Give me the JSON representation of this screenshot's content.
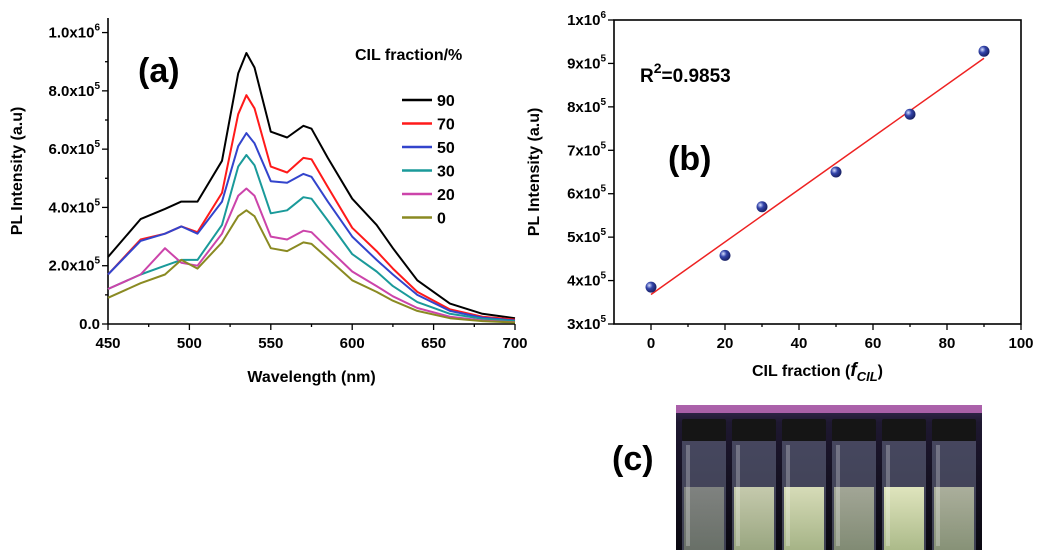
{
  "chart_data": [
    {
      "panel": "(a)",
      "type": "line",
      "xlabel": "Wavelength (nm)",
      "ylabel": "PL Intensity (a.u)",
      "xlim": [
        450,
        700
      ],
      "ylim": [
        0,
        1050000
      ],
      "x_ticks": [
        "450",
        "500",
        "550",
        "600",
        "650",
        "700"
      ],
      "y_ticks": [
        {
          "mantissa": "0.0",
          "exp": ""
        },
        {
          "mantissa": "2.0x10",
          "exp": "5"
        },
        {
          "mantissa": "4.0x10",
          "exp": "5"
        },
        {
          "mantissa": "6.0x10",
          "exp": "5"
        },
        {
          "mantissa": "8.0x10",
          "exp": "5"
        },
        {
          "mantissa": "1.0x10",
          "exp": "6"
        }
      ],
      "legend_title": "CIL fraction/%",
      "legend_position": "top-right",
      "x": [
        450,
        470,
        485,
        495,
        505,
        520,
        530,
        535,
        540,
        550,
        560,
        570,
        575,
        585,
        600,
        615,
        625,
        640,
        660,
        680,
        700
      ],
      "series": [
        {
          "name": "90",
          "color": "#000000",
          "values": [
            230000,
            360000,
            395000,
            420000,
            420000,
            560000,
            860000,
            930000,
            880000,
            660000,
            640000,
            680000,
            670000,
            570000,
            430000,
            340000,
            260000,
            150000,
            70000,
            35000,
            20000
          ]
        },
        {
          "name": "70",
          "color": "#ff1a1a",
          "values": [
            170000,
            290000,
            310000,
            335000,
            315000,
            450000,
            720000,
            785000,
            740000,
            540000,
            520000,
            570000,
            565000,
            470000,
            330000,
            250000,
            190000,
            110000,
            50000,
            25000,
            15000
          ]
        },
        {
          "name": "50",
          "color": "#3344cc",
          "values": [
            170000,
            285000,
            310000,
            335000,
            310000,
            420000,
            610000,
            655000,
            620000,
            490000,
            485000,
            515000,
            505000,
            420000,
            300000,
            220000,
            170000,
            100000,
            45000,
            22000,
            12000
          ]
        },
        {
          "name": "30",
          "color": "#1a9a9a",
          "values": [
            120000,
            170000,
            200000,
            220000,
            220000,
            340000,
            540000,
            580000,
            545000,
            380000,
            390000,
            435000,
            430000,
            355000,
            240000,
            180000,
            130000,
            75000,
            35000,
            18000,
            10000
          ]
        },
        {
          "name": "20",
          "color": "#cc44aa",
          "values": [
            120000,
            170000,
            260000,
            210000,
            200000,
            310000,
            440000,
            465000,
            440000,
            300000,
            290000,
            320000,
            315000,
            260000,
            180000,
            130000,
            95000,
            55000,
            25000,
            12000,
            6000
          ]
        },
        {
          "name": "0",
          "color": "#8a8a22",
          "values": [
            90000,
            140000,
            170000,
            220000,
            190000,
            280000,
            370000,
            390000,
            370000,
            260000,
            250000,
            280000,
            275000,
            225000,
            150000,
            110000,
            80000,
            45000,
            20000,
            10000,
            5000
          ]
        }
      ]
    },
    {
      "panel": "(b)",
      "type": "scatter",
      "xlabel_main": "CIL fraction (",
      "xlabel_var": "f",
      "xlabel_sub": "CIL",
      "xlabel_end": ")",
      "ylabel": "PL Intensity (a.u)",
      "xlim": [
        -10,
        100
      ],
      "ylim": [
        300000,
        1000000
      ],
      "x_ticks": [
        "0",
        "20",
        "40",
        "60",
        "80",
        "100"
      ],
      "y_ticks": [
        {
          "mantissa": "3x10",
          "exp": "5"
        },
        {
          "mantissa": "4x10",
          "exp": "5"
        },
        {
          "mantissa": "5x10",
          "exp": "5"
        },
        {
          "mantissa": "6x10",
          "exp": "5"
        },
        {
          "mantissa": "7x10",
          "exp": "5"
        },
        {
          "mantissa": "8x10",
          "exp": "5"
        },
        {
          "mantissa": "9x10",
          "exp": "5"
        },
        {
          "mantissa": "1x10",
          "exp": "6"
        }
      ],
      "annotation_r": "R",
      "annotation_sup": "2",
      "annotation_value": "=0.9853",
      "points": [
        {
          "x": 0,
          "y": 385000
        },
        {
          "x": 20,
          "y": 458000
        },
        {
          "x": 30,
          "y": 570000
        },
        {
          "x": 50,
          "y": 650000
        },
        {
          "x": 70,
          "y": 783000
        },
        {
          "x": 90,
          "y": 928000
        }
      ],
      "fit_line": [
        {
          "x": 0,
          "y": 368000
        },
        {
          "x": 90,
          "y": 912000
        }
      ],
      "point_color": "#3344aa",
      "fit_color": "#ee2222"
    }
  ],
  "photo": {
    "panel": "(c)",
    "vials": 6
  }
}
